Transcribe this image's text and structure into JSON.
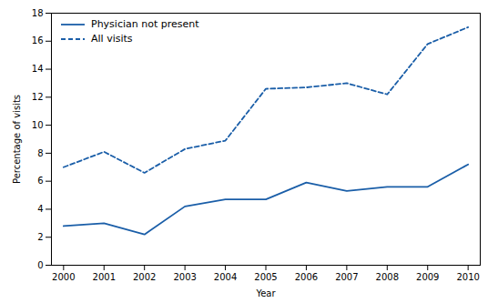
{
  "chart_data": {
    "type": "line",
    "x": [
      2000,
      2001,
      2002,
      2003,
      2004,
      2005,
      2006,
      2007,
      2008,
      2009,
      2010
    ],
    "series": [
      {
        "name": "Physician not present",
        "color": "#1a5ea8",
        "line_style": "solid",
        "values": [
          2.8,
          3.0,
          2.2,
          4.2,
          4.7,
          4.7,
          5.9,
          5.3,
          5.6,
          5.6,
          7.2
        ]
      },
      {
        "name": "All visits",
        "color": "#1a5ea8",
        "line_style": "dashed",
        "values": [
          7.0,
          8.1,
          6.6,
          8.3,
          8.9,
          12.6,
          12.7,
          13.0,
          12.2,
          15.8,
          17.0
        ]
      }
    ],
    "xlabel": "Year",
    "ylabel": "Percentage of visits",
    "xlim": [
      1999.7,
      2010.3
    ],
    "xticks": [
      2000,
      2001,
      2002,
      2003,
      2004,
      2005,
      2006,
      2007,
      2008,
      2009,
      2010
    ],
    "ylim": [
      0,
      18
    ],
    "yticks": [
      0,
      2,
      4,
      6,
      8,
      10,
      12,
      14,
      16,
      18
    ],
    "grid": false,
    "legend": "upper left"
  }
}
